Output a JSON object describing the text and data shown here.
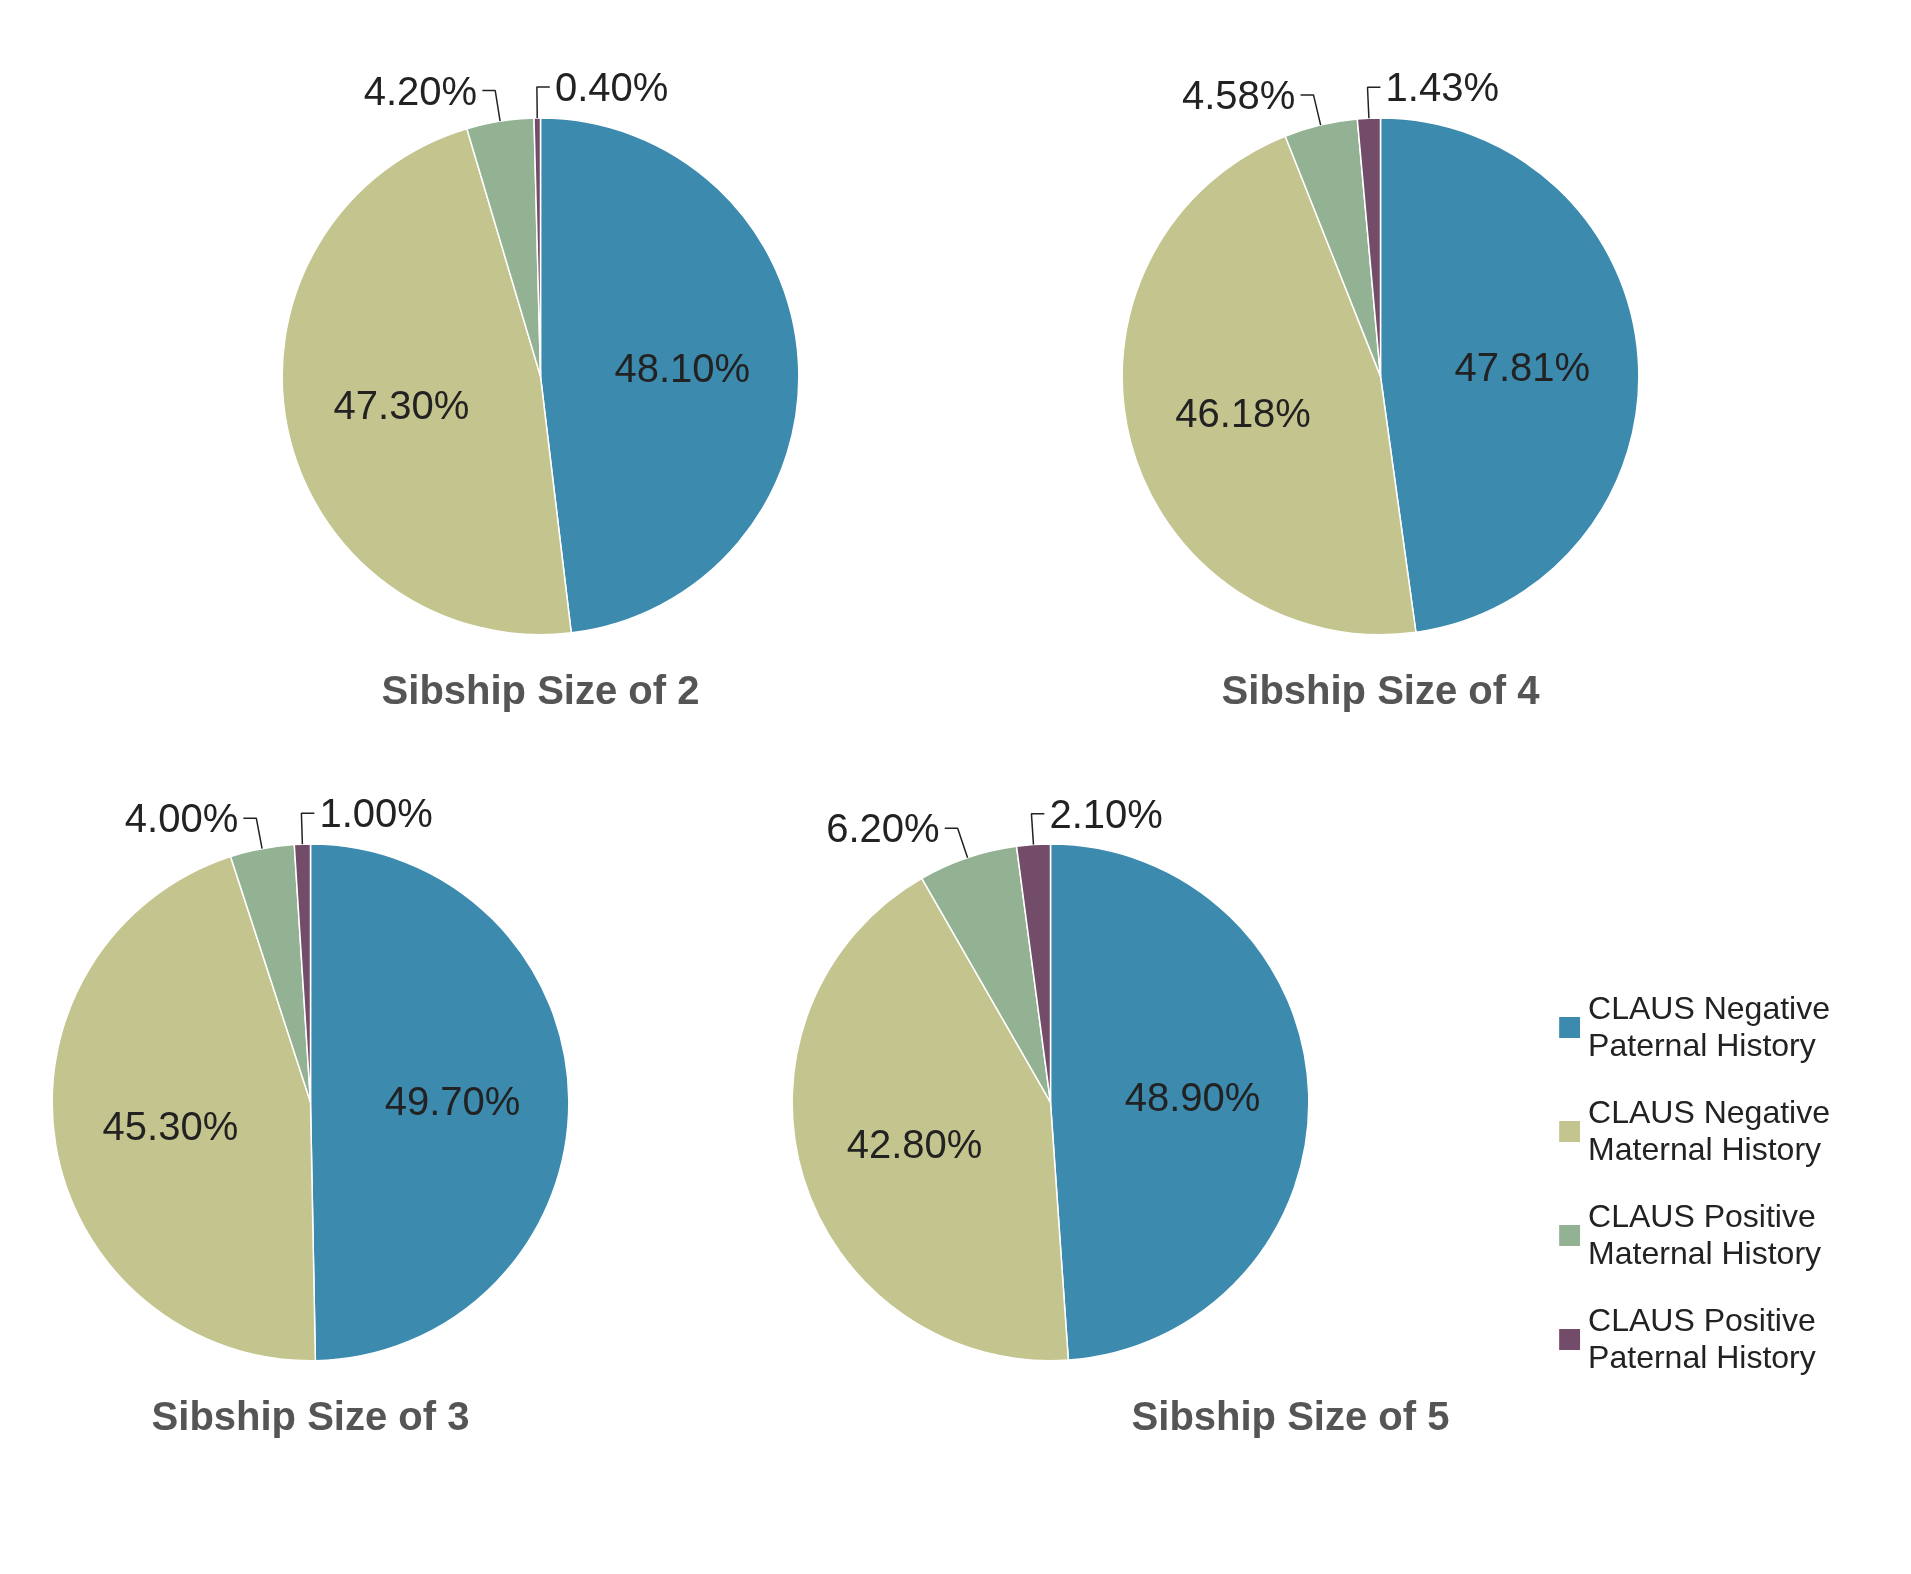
{
  "chart_data": [
    {
      "type": "pie",
      "title": "Sibship Size of 2",
      "categories": [
        null,
        null,
        null,
        null
      ],
      "values": [
        48.1,
        47.3,
        4.2,
        0.4
      ],
      "value_labels": [
        "48.10%",
        "47.30%",
        "4.20%",
        "0.40%"
      ],
      "colors": [
        "#3c8aae",
        "#c4c48e",
        "#93b294",
        "#734c69"
      ],
      "legend": false
    },
    {
      "type": "pie",
      "title": "Sibship Size of 4",
      "categories": [
        null,
        null,
        null,
        null
      ],
      "values": [
        47.81,
        46.18,
        4.58,
        1.43
      ],
      "value_labels": [
        "47.81%",
        "46.18%",
        "4.58%",
        "1.43%"
      ],
      "colors": [
        "#3c8aae",
        "#c4c48e",
        "#93b294",
        "#734c69"
      ],
      "legend": false
    },
    {
      "type": "pie",
      "title": "Sibship Size of 3",
      "categories": [
        null,
        null,
        null,
        null
      ],
      "values": [
        49.7,
        45.3,
        4.0,
        1.0
      ],
      "value_labels": [
        "49.70%",
        "45.30%",
        "4.00%",
        "1.00%"
      ],
      "colors": [
        "#3c8aae",
        "#c4c48e",
        "#93b294",
        "#734c69"
      ],
      "legend": false
    },
    {
      "type": "pie",
      "title": "Sibship Size of 5",
      "categories": [
        "CLAUS Negative Paternal History",
        "CLAUS Negative Maternal History",
        "CLAUS Positive Maternal History",
        "CLAUS Positive Paternal History"
      ],
      "values": [
        48.9,
        42.8,
        6.2,
        2.1
      ],
      "value_labels": [
        "48.90%",
        "42.80%",
        "6.20%",
        "2.10%"
      ],
      "colors": [
        "#3c8aae",
        "#c4c48e",
        "#93b294",
        "#734c69"
      ],
      "legend": "right"
    }
  ]
}
